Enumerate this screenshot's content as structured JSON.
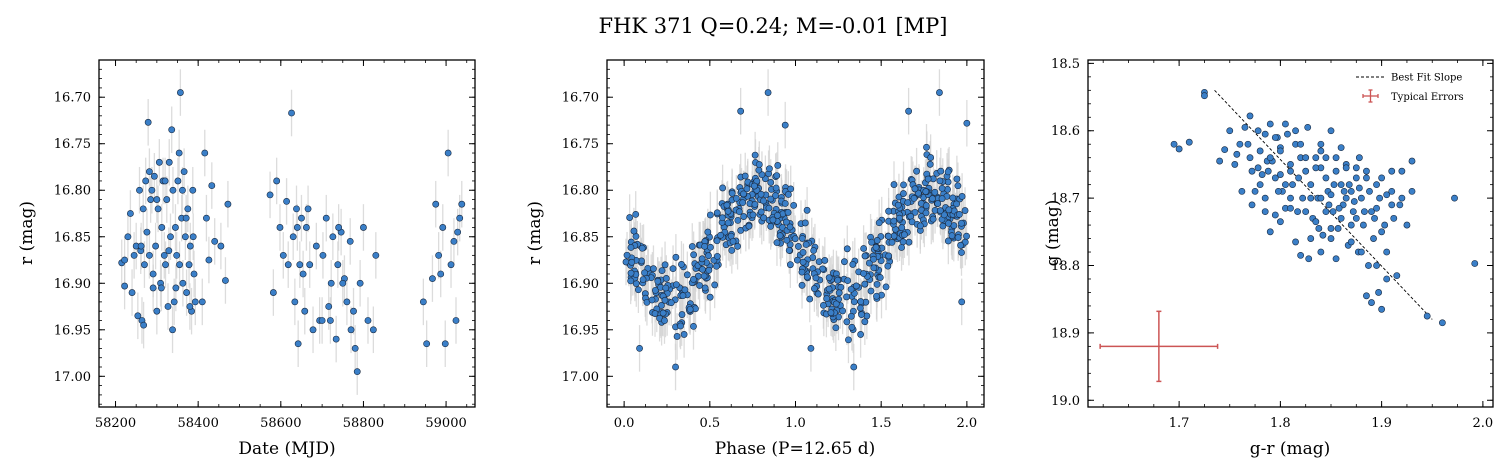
{
  "title": "FHK 371  Q=0.24; M=-0.01 [MP]",
  "colors": {
    "point": "#3a7fc8",
    "point_edge": "#1a2a40",
    "errorbar": "#d3d3d3",
    "fit_line": "#000000",
    "typical_error": "#cc5555"
  },
  "chart_data": [
    {
      "type": "scatter",
      "name": "light-curve-time",
      "xlabel": "Date (MJD)",
      "ylabel": "r (mag)",
      "xlim": [
        58160,
        59070
      ],
      "ylim": [
        17.033,
        16.66
      ],
      "y_inverted": true,
      "x_ticks": [
        58200,
        58400,
        58600,
        58800,
        59000
      ],
      "x_tick_labels": [
        "58200",
        "58400",
        "58600",
        "58800",
        "59000"
      ],
      "y_ticks": [
        16.7,
        16.75,
        16.8,
        16.85,
        16.9,
        16.95,
        17.0
      ],
      "y_tick_labels": [
        "16.70",
        "16.75",
        "16.80",
        "16.85",
        "16.90",
        "16.95",
        "17.00"
      ],
      "y_err_typical": 0.025,
      "points": [
        [
          58215,
          16.878
        ],
        [
          58222,
          16.903
        ],
        [
          58230,
          16.85
        ],
        [
          58236,
          16.825
        ],
        [
          58240,
          16.91
        ],
        [
          58245,
          16.87
        ],
        [
          58250,
          16.86
        ],
        [
          58254,
          16.935
        ],
        [
          58258,
          16.8
        ],
        [
          58261,
          16.865
        ],
        [
          58264,
          16.94
        ],
        [
          58267,
          16.82
        ],
        [
          58270,
          16.88
        ],
        [
          58273,
          16.79
        ],
        [
          58276,
          16.845
        ],
        [
          58279,
          16.727
        ],
        [
          58282,
          16.87
        ],
        [
          58285,
          16.81
        ],
        [
          58288,
          16.8
        ],
        [
          58291,
          16.89
        ],
        [
          58294,
          16.785
        ],
        [
          58297,
          16.86
        ],
        [
          58300,
          16.93
        ],
        [
          58303,
          16.82
        ],
        [
          58306,
          16.77
        ],
        [
          58309,
          16.9
        ],
        [
          58312,
          16.84
        ],
        [
          58315,
          16.79
        ],
        [
          58318,
          16.87
        ],
        [
          58321,
          16.88
        ],
        [
          58324,
          16.81
        ],
        [
          58327,
          16.925
        ],
        [
          58330,
          16.77
        ],
        [
          58333,
          16.85
        ],
        [
          58336,
          16.735
        ],
        [
          58339,
          16.8
        ],
        [
          58342,
          16.92
        ],
        [
          58345,
          16.84
        ],
        [
          58348,
          16.87
        ],
        [
          58351,
          16.79
        ],
        [
          58354,
          16.76
        ],
        [
          58357,
          16.695
        ],
        [
          58360,
          16.83
        ],
        [
          58363,
          16.9
        ],
        [
          58366,
          16.78
        ],
        [
          58369,
          16.85
        ],
        [
          58372,
          16.91
        ],
        [
          58375,
          16.82
        ],
        [
          58378,
          16.88
        ],
        [
          58381,
          16.86
        ],
        [
          58384,
          16.93
        ],
        [
          58387,
          16.8
        ],
        [
          58390,
          16.89
        ],
        [
          58393,
          16.92
        ],
        [
          58410,
          16.92
        ],
        [
          58416,
          16.76
        ],
        [
          58420,
          16.83
        ],
        [
          58426,
          16.875
        ],
        [
          58433,
          16.795
        ],
        [
          58440,
          16.855
        ],
        [
          58455,
          16.86
        ],
        [
          58466,
          16.897
        ],
        [
          58472,
          16.815
        ],
        [
          58222,
          16.875
        ],
        [
          58262,
          16.86
        ],
        [
          58268,
          16.945
        ],
        [
          58282,
          16.78
        ],
        [
          58291,
          16.905
        ],
        [
          58300,
          16.81
        ],
        [
          58311,
          16.905
        ],
        [
          58320,
          16.79
        ],
        [
          58329,
          16.865
        ],
        [
          58338,
          16.95
        ],
        [
          58346,
          16.905
        ],
        [
          58355,
          16.88
        ],
        [
          58362,
          16.8
        ],
        [
          58371,
          16.83
        ],
        [
          58380,
          16.925
        ],
        [
          58388,
          16.85
        ],
        [
          58574,
          16.805
        ],
        [
          58582,
          16.91
        ],
        [
          58590,
          16.79
        ],
        [
          58598,
          16.84
        ],
        [
          58606,
          16.87
        ],
        [
          58614,
          16.812
        ],
        [
          58618,
          16.88
        ],
        [
          58626,
          16.717
        ],
        [
          58630,
          16.85
        ],
        [
          58634,
          16.92
        ],
        [
          58638,
          16.82
        ],
        [
          58642,
          16.965
        ],
        [
          58646,
          16.88
        ],
        [
          58650,
          16.83
        ],
        [
          58654,
          16.89
        ],
        [
          58658,
          16.93
        ],
        [
          58662,
          16.84
        ],
        [
          58666,
          16.82
        ],
        [
          58670,
          16.88
        ],
        [
          58678,
          16.95
        ],
        [
          58686,
          16.86
        ],
        [
          58694,
          16.94
        ],
        [
          58702,
          16.87
        ],
        [
          58710,
          16.83
        ],
        [
          58716,
          16.925
        ],
        [
          58722,
          16.9
        ],
        [
          58726,
          16.85
        ],
        [
          58734,
          16.96
        ],
        [
          58738,
          16.88
        ],
        [
          58746,
          16.845
        ],
        [
          58754,
          16.895
        ],
        [
          58760,
          16.92
        ],
        [
          58768,
          16.855
        ],
        [
          58776,
          16.93
        ],
        [
          58780,
          16.97
        ],
        [
          58785,
          16.995
        ],
        [
          58792,
          16.9
        ],
        [
          58800,
          16.84
        ],
        [
          58811,
          16.94
        ],
        [
          58824,
          16.95
        ],
        [
          58830,
          16.87
        ],
        [
          58640,
          16.84
        ],
        [
          58700,
          16.94
        ],
        [
          58720,
          16.94
        ],
        [
          58740,
          16.84
        ],
        [
          58750,
          16.9
        ],
        [
          58770,
          16.95
        ],
        [
          58945,
          16.92
        ],
        [
          58953,
          16.965
        ],
        [
          58967,
          16.895
        ],
        [
          58975,
          16.815
        ],
        [
          58982,
          16.87
        ],
        [
          58987,
          16.89
        ],
        [
          58992,
          16.84
        ],
        [
          58998,
          16.965
        ],
        [
          59005,
          16.76
        ],
        [
          59012,
          16.88
        ],
        [
          59019,
          16.855
        ],
        [
          59024,
          16.94
        ],
        [
          59028,
          16.845
        ],
        [
          59033,
          16.83
        ],
        [
          59038,
          16.815
        ]
      ]
    },
    {
      "type": "scatter",
      "name": "phase-folded",
      "xlabel": "Phase (P=12.65 d)",
      "ylabel": "r (mag)",
      "xlim": [
        -0.1,
        2.1
      ],
      "ylim": [
        17.033,
        16.66
      ],
      "y_inverted": true,
      "x_ticks": [
        0.0,
        0.5,
        1.0,
        1.5,
        2.0
      ],
      "x_tick_labels": [
        "0.0",
        "0.5",
        "1.0",
        "1.5",
        "2.0"
      ],
      "y_ticks": [
        16.7,
        16.75,
        16.8,
        16.85,
        16.9,
        16.95,
        17.0
      ],
      "y_tick_labels": [
        "16.70",
        "16.75",
        "16.80",
        "16.85",
        "16.90",
        "16.95",
        "17.00"
      ],
      "y_err_typical": 0.025,
      "model": {
        "mean": 16.86,
        "amplitude": 0.055,
        "peak_phase": 0.78
      },
      "seed": 371,
      "n_points": 320,
      "extreme_points": [
        [
          0.84,
          16.695
        ],
        [
          0.68,
          16.715
        ],
        [
          0.94,
          16.73
        ],
        [
          1.84,
          16.695
        ],
        [
          2.0,
          16.728
        ],
        [
          1.66,
          16.715
        ],
        [
          0.3,
          16.99
        ],
        [
          0.35,
          16.955
        ],
        [
          1.34,
          16.99
        ],
        [
          1.38,
          16.955
        ],
        [
          0.97,
          16.88
        ],
        [
          1.97,
          16.92
        ],
        [
          0.09,
          16.97
        ],
        [
          1.09,
          16.97
        ]
      ]
    },
    {
      "type": "scatter",
      "name": "color-magnitude",
      "xlabel": "g-r (mag)",
      "ylabel": "g (mag)",
      "xlim": [
        1.61,
        2.01
      ],
      "ylim": [
        19.01,
        18.495
      ],
      "y_inverted": true,
      "x_ticks": [
        1.7,
        1.8,
        1.9,
        2.0
      ],
      "x_tick_labels": [
        "1.7",
        "1.8",
        "1.9",
        "2.0"
      ],
      "y_ticks": [
        18.5,
        18.6,
        18.7,
        18.8,
        18.9,
        19.0
      ],
      "y_tick_labels": [
        "18.5",
        "18.6",
        "18.7",
        "18.8",
        "18.9",
        "19.0"
      ],
      "fit_line": {
        "x": [
          1.735,
          1.95
        ],
        "y": [
          18.54,
          18.88
        ]
      },
      "typical_error": {
        "x": 1.68,
        "y": 18.92,
        "xerr": 0.058,
        "yerr": 0.052
      },
      "legend": {
        "position": "upper right",
        "entries": [
          "Best Fit Slope",
          "Typical Errors"
        ]
      },
      "points": [
        [
          1.725,
          18.543
        ],
        [
          1.725,
          18.548
        ],
        [
          1.695,
          18.62
        ],
        [
          1.7,
          18.627
        ],
        [
          1.71,
          18.617
        ],
        [
          1.74,
          18.645
        ],
        [
          1.745,
          18.628
        ],
        [
          1.75,
          18.6
        ],
        [
          1.755,
          18.65
        ],
        [
          1.76,
          18.62
        ],
        [
          1.765,
          18.595
        ],
        [
          1.77,
          18.578
        ],
        [
          1.772,
          18.66
        ],
        [
          1.775,
          18.69
        ],
        [
          1.778,
          18.6
        ],
        [
          1.78,
          18.63
        ],
        [
          1.782,
          18.665
        ],
        [
          1.785,
          18.605
        ],
        [
          1.787,
          18.645
        ],
        [
          1.79,
          18.59
        ],
        [
          1.792,
          18.645
        ],
        [
          1.795,
          18.67
        ],
        [
          1.797,
          18.61
        ],
        [
          1.8,
          18.625
        ],
        [
          1.802,
          18.69
        ],
        [
          1.805,
          18.715
        ],
        [
          1.807,
          18.605
        ],
        [
          1.81,
          18.65
        ],
        [
          1.812,
          18.68
        ],
        [
          1.815,
          18.62
        ],
        [
          1.817,
          18.72
        ],
        [
          1.82,
          18.64
        ],
        [
          1.822,
          18.7
        ],
        [
          1.825,
          18.66
        ],
        [
          1.827,
          18.595
        ],
        [
          1.83,
          18.68
        ],
        [
          1.832,
          18.73
        ],
        [
          1.835,
          18.64
        ],
        [
          1.837,
          18.7
        ],
        [
          1.84,
          18.62
        ],
        [
          1.842,
          18.755
        ],
        [
          1.845,
          18.67
        ],
        [
          1.847,
          18.69
        ],
        [
          1.85,
          18.6
        ],
        [
          1.852,
          18.72
        ],
        [
          1.855,
          18.66
        ],
        [
          1.857,
          18.745
        ],
        [
          1.86,
          18.68
        ],
        [
          1.862,
          18.71
        ],
        [
          1.865,
          18.65
        ],
        [
          1.867,
          18.77
        ],
        [
          1.87,
          18.69
        ],
        [
          1.872,
          18.72
        ],
        [
          1.875,
          18.655
        ],
        [
          1.877,
          18.78
        ],
        [
          1.88,
          18.7
        ],
        [
          1.882,
          18.74
        ],
        [
          1.885,
          18.67
        ],
        [
          1.887,
          18.8
        ],
        [
          1.89,
          18.72
        ],
        [
          1.892,
          18.76
        ],
        [
          1.895,
          18.68
        ],
        [
          1.897,
          18.84
        ],
        [
          1.9,
          18.75
        ],
        [
          1.905,
          18.78
        ],
        [
          1.91,
          18.71
        ],
        [
          1.915,
          18.815
        ],
        [
          1.92,
          18.66
        ],
        [
          1.925,
          18.74
        ],
        [
          1.93,
          18.645
        ],
        [
          1.93,
          18.69
        ],
        [
          1.945,
          18.875
        ],
        [
          1.96,
          18.885
        ],
        [
          1.972,
          18.7
        ],
        [
          1.992,
          18.797
        ],
        [
          1.885,
          18.845
        ],
        [
          1.89,
          18.855
        ],
        [
          1.9,
          18.865
        ],
        [
          1.762,
          18.69
        ],
        [
          1.772,
          18.71
        ],
        [
          1.79,
          18.75
        ],
        [
          1.8,
          18.735
        ],
        [
          1.81,
          18.7
        ],
        [
          1.815,
          18.765
        ],
        [
          1.82,
          18.785
        ],
        [
          1.83,
          18.7
        ],
        [
          1.838,
          18.745
        ],
        [
          1.845,
          18.72
        ],
        [
          1.85,
          18.695
        ],
        [
          1.86,
          18.73
        ],
        [
          1.865,
          18.7
        ],
        [
          1.87,
          18.74
        ],
        [
          1.86,
          18.625
        ],
        [
          1.84,
          18.655
        ],
        [
          1.825,
          18.64
        ],
        [
          1.8,
          18.665
        ],
        [
          1.818,
          18.67
        ],
        [
          1.853,
          18.68
        ],
        [
          1.878,
          18.685
        ],
        [
          1.895,
          18.715
        ],
        [
          1.905,
          18.695
        ],
        [
          1.912,
          18.73
        ],
        [
          1.835,
          18.655
        ],
        [
          1.845,
          18.64
        ],
        [
          1.8,
          18.63
        ],
        [
          1.79,
          18.64
        ],
        [
          1.77,
          18.64
        ],
        [
          1.757,
          18.635
        ],
        [
          1.785,
          18.7
        ],
        [
          1.81,
          18.715
        ],
        [
          1.83,
          18.76
        ],
        [
          1.85,
          18.745
        ],
        [
          1.87,
          18.765
        ],
        [
          1.88,
          18.78
        ],
        [
          1.895,
          18.8
        ],
        [
          1.905,
          18.82
        ],
        [
          1.795,
          18.61
        ],
        [
          1.805,
          18.59
        ],
        [
          1.815,
          18.6
        ],
        [
          1.82,
          18.62
        ],
        [
          1.84,
          18.63
        ],
        [
          1.855,
          18.64
        ],
        [
          1.865,
          18.655
        ],
        [
          1.875,
          18.67
        ],
        [
          1.885,
          18.66
        ],
        [
          1.9,
          18.67
        ],
        [
          1.91,
          18.66
        ],
        [
          1.92,
          18.7
        ],
        [
          1.78,
          18.68
        ],
        [
          1.785,
          18.72
        ],
        [
          1.795,
          18.725
        ],
        [
          1.825,
          18.72
        ],
        [
          1.835,
          18.735
        ],
        [
          1.84,
          18.7
        ],
        [
          1.848,
          18.71
        ],
        [
          1.858,
          18.715
        ],
        [
          1.863,
          18.69
        ],
        [
          1.873,
          18.705
        ],
        [
          1.883,
          18.72
        ],
        [
          1.893,
          18.73
        ],
        [
          1.903,
          18.74
        ],
        [
          1.84,
          18.78
        ],
        [
          1.828,
          18.79
        ],
        [
          1.85,
          18.76
        ],
        [
          1.855,
          18.79
        ],
        [
          1.875,
          18.73
        ],
        [
          1.868,
          18.68
        ],
        [
          1.878,
          18.64
        ],
        [
          1.888,
          18.69
        ],
        [
          1.898,
          18.7
        ],
        [
          1.91,
          18.69
        ],
        [
          1.918,
          18.71
        ],
        [
          1.81,
          18.66
        ],
        [
          1.805,
          18.68
        ],
        [
          1.798,
          18.69
        ],
        [
          1.788,
          18.66
        ],
        [
          1.778,
          18.655
        ],
        [
          1.768,
          18.62
        ]
      ]
    }
  ]
}
